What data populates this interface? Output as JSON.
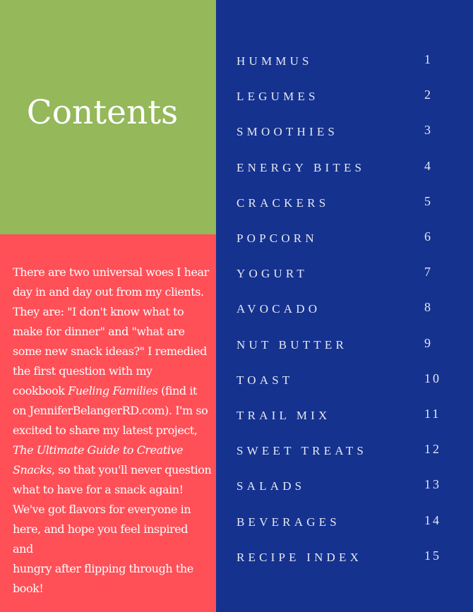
{
  "colors": {
    "green": "#94b85a",
    "red": "#ff4f57",
    "blue": "#15328f"
  },
  "title": "Contents",
  "intro": {
    "l1": "There are two universal woes I hear",
    "l2": "day in and day out from my clients.",
    "l3": "They are: \"I don't know what to",
    "l4": "make for dinner\" and \"what are",
    "l5": "some new snack ideas?\" I remedied",
    "l6": "the first question with my",
    "l7a": "cookbook ",
    "l7b": "Fueling Families",
    "l7c": " (find it",
    "l8": "on JenniferBelangerRD.com). I'm so",
    "l9": "excited to share my latest project,",
    "l10": "The Ultimate Guide to Creative",
    "l11a": "Snacks",
    "l11b": ", so that you'll never question",
    "l12": "what to have for a snack again!",
    "l13": "We've got flavors for everyone in",
    "l14": "here, and hope you feel inspired",
    "l15_overlap": "and",
    "l15": "hungry after flipping through the",
    "l16": "book!"
  },
  "toc": [
    {
      "label": "HUMMUS",
      "page": "1"
    },
    {
      "label": "LEGUMES",
      "page": "2"
    },
    {
      "label": "SMOOTHIES",
      "page": "3"
    },
    {
      "label": "ENERGY BITES",
      "page": "4"
    },
    {
      "label": "CRACKERS",
      "page": "5"
    },
    {
      "label": "POPCORN",
      "page": "6"
    },
    {
      "label": "YOGURT",
      "page": "7"
    },
    {
      "label": "AVOCADO",
      "page": "8"
    },
    {
      "label": "NUT BUTTER",
      "page": "9"
    },
    {
      "label": "TOAST",
      "page": "10"
    },
    {
      "label": "TRAIL MIX",
      "page": "11"
    },
    {
      "label": "SWEET TREATS",
      "page": "12"
    },
    {
      "label": "SALADS",
      "page": "13"
    },
    {
      "label": "BEVERAGES",
      "page": "14"
    },
    {
      "label": "RECIPE INDEX",
      "page": "15"
    }
  ]
}
